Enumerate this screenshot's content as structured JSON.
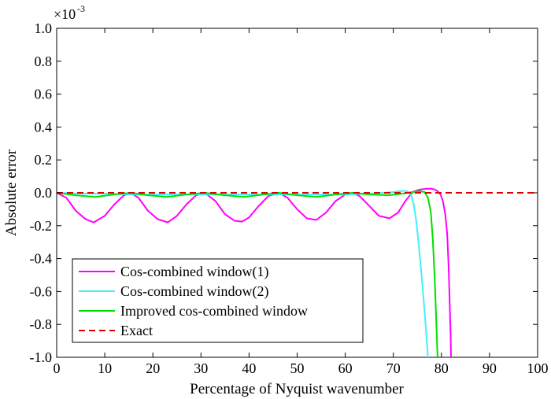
{
  "chart_data": {
    "type": "line",
    "xlabel": "Percentage of Nyquist wavenumber",
    "ylabel": "Absolute error",
    "y_multiplier": {
      "base": "×10",
      "exponent": "-3"
    },
    "xlim": [
      0,
      100
    ],
    "ylim": [
      -1.0,
      1.0
    ],
    "x_ticks": [
      0,
      10,
      20,
      30,
      40,
      50,
      60,
      70,
      80,
      90,
      100
    ],
    "x_tick_labels": [
      "0",
      "10",
      "20",
      "30",
      "40",
      "50",
      "60",
      "70",
      "80",
      "90",
      "100"
    ],
    "y_ticks": [
      -1.0,
      -0.8,
      -0.6,
      -0.4,
      -0.2,
      0.0,
      0.2,
      0.4,
      0.6,
      0.8,
      1.0
    ],
    "y_tick_labels": [
      "-1.0",
      "-0.8",
      "-0.6",
      "-0.4",
      "-0.2",
      "0.0",
      "0.2",
      "0.4",
      "0.6",
      "0.8",
      "1.0"
    ],
    "grid": false,
    "legend_position": "bottom-left",
    "series": [
      {
        "name": "Cos-combined window(1)",
        "color": "#ff00ff",
        "style": "solid",
        "x": [
          0,
          2,
          4,
          6,
          7.7,
          10,
          12,
          14,
          15.4,
          17,
          19,
          21,
          23.1,
          25,
          27,
          29,
          30.8,
          33,
          35,
          37,
          38.5,
          40,
          42,
          44,
          46.2,
          48,
          50,
          52,
          54,
          56,
          58,
          60,
          61.6,
          63,
          65,
          67,
          69.2,
          71,
          72.5,
          74,
          75.5,
          77,
          78,
          78.6,
          79.2,
          79.8,
          80.3,
          80.8,
          81.2,
          81.5,
          81.7,
          81.9,
          82.0
        ],
        "y": [
          0,
          -0.03,
          -0.11,
          -0.16,
          -0.18,
          -0.14,
          -0.07,
          -0.015,
          0,
          -0.03,
          -0.11,
          -0.16,
          -0.18,
          -0.14,
          -0.07,
          -0.015,
          0,
          -0.05,
          -0.13,
          -0.17,
          -0.175,
          -0.15,
          -0.08,
          -0.02,
          0,
          -0.03,
          -0.1,
          -0.155,
          -0.165,
          -0.12,
          -0.05,
          -0.01,
          0,
          -0.02,
          -0.08,
          -0.14,
          -0.155,
          -0.12,
          -0.05,
          0.005,
          0.02,
          0.025,
          0.025,
          0.02,
          0.01,
          -0.01,
          -0.05,
          -0.13,
          -0.25,
          -0.45,
          -0.65,
          -0.85,
          -1.0
        ]
      },
      {
        "name": "Cos-combined window(2)",
        "color": "#44eeff",
        "style": "solid",
        "x": [
          0,
          5,
          10,
          15,
          20,
          25,
          30,
          35,
          40,
          45,
          50,
          55,
          60,
          65,
          68,
          70,
          71.5,
          72.5,
          73.2,
          73.8,
          74.3,
          74.8,
          75.3,
          75.8,
          76.3,
          76.7,
          77.0,
          77.2
        ],
        "y": [
          0,
          -0.005,
          -0.005,
          -0.01,
          -0.01,
          -0.01,
          -0.01,
          -0.01,
          -0.01,
          -0.01,
          -0.01,
          -0.01,
          -0.01,
          -0.005,
          0,
          0.005,
          0.01,
          0.012,
          0.005,
          -0.02,
          -0.08,
          -0.18,
          -0.32,
          -0.48,
          -0.65,
          -0.8,
          -0.92,
          -1.0
        ]
      },
      {
        "name": "Improved cos-combined window",
        "color": "#00e000",
        "style": "solid",
        "x": [
          0,
          4,
          8,
          12,
          15.4,
          19,
          23,
          27,
          30.8,
          35,
          39,
          43,
          46.2,
          50,
          54,
          58,
          61.6,
          65,
          69,
          72,
          74,
          75.5,
          76.5,
          77.2,
          77.8,
          78.2,
          78.6,
          78.9,
          79.2
        ],
        "y": [
          0,
          -0.015,
          -0.025,
          -0.01,
          0,
          -0.015,
          -0.025,
          -0.01,
          0,
          -0.015,
          -0.025,
          -0.01,
          0,
          -0.015,
          -0.025,
          -0.01,
          0,
          -0.01,
          -0.015,
          -0.005,
          0.005,
          0.01,
          0.005,
          -0.03,
          -0.12,
          -0.28,
          -0.52,
          -0.76,
          -1.0
        ]
      },
      {
        "name": "Exact",
        "color": "#e00000",
        "style": "dashed",
        "x": [
          0,
          100
        ],
        "y": [
          0,
          0
        ]
      }
    ]
  }
}
